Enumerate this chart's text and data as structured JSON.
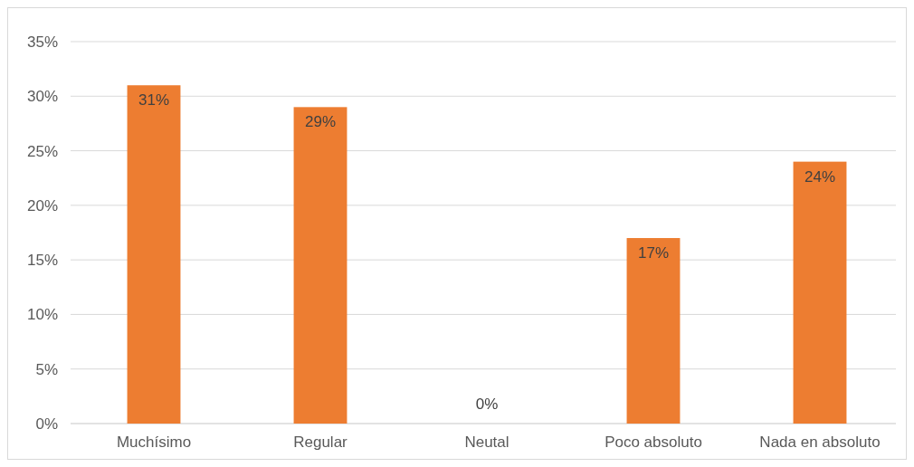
{
  "chart_data": {
    "type": "bar",
    "categories": [
      "Muchísimo",
      "Regular",
      "Neutal",
      "Poco absoluto",
      "Nada en absoluto"
    ],
    "values": [
      31,
      29,
      0,
      17,
      24
    ],
    "color": "#ed7d31",
    "value_labels": [
      "31%",
      "29%",
      "0%",
      "17%",
      "24%"
    ],
    "ylim": [
      0,
      35
    ],
    "yticks": [
      {
        "value": 0,
        "label": "0%"
      },
      {
        "value": 5,
        "label": "5%"
      },
      {
        "value": 10,
        "label": "10%"
      },
      {
        "value": 15,
        "label": "15%"
      },
      {
        "value": 20,
        "label": "20%"
      },
      {
        "value": 25,
        "label": "25%"
      },
      {
        "value": 30,
        "label": "30%"
      },
      {
        "value": 35,
        "label": "35%"
      }
    ],
    "grid": "y"
  }
}
